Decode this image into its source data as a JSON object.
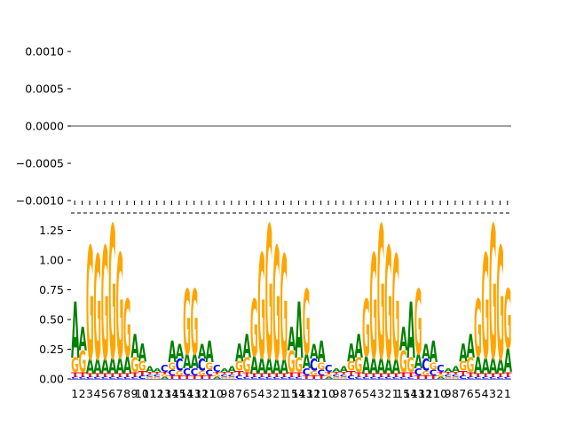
{
  "chart_data": [
    {
      "type": "line",
      "title": "",
      "xlabel": "",
      "ylabel": "",
      "ylim": [
        -0.00125,
        0.00125
      ],
      "ytick_labels": [
        "0.0010",
        "0.0005",
        "0.0000",
        "−0.0005",
        "−0.0010"
      ],
      "ytick_values": [
        0.001,
        0.0005,
        0,
        -0.0005,
        -0.001
      ],
      "series": [
        {
          "values": [
            0,
            0
          ]
        }
      ],
      "grid": false
    },
    {
      "type": "bar",
      "subtype": "sequence-logo",
      "title": "",
      "xlabel": "",
      "ylabel": "",
      "ylim": [
        0,
        1.37
      ],
      "ytick_labels": [
        "0.00",
        "0.25",
        "0.50",
        "0.75",
        "1.00",
        "1.25"
      ],
      "ytick_values": [
        0,
        0.25,
        0.5,
        0.75,
        1.0,
        1.25
      ],
      "categories": [
        "1",
        "2",
        "3",
        "4",
        "5",
        "6",
        "7",
        "8",
        "9",
        "10",
        "11",
        "12",
        "13",
        "14",
        "15",
        "14",
        "13",
        "12",
        "11",
        "10",
        "9",
        "8",
        "7",
        "6",
        "5",
        "4",
        "3",
        "2",
        "1",
        "15",
        "14",
        "13",
        "12",
        "11",
        "10",
        "9",
        "8",
        "7",
        "6",
        "5",
        "4",
        "3",
        "2",
        "1",
        "15",
        "14",
        "13",
        "12",
        "11",
        "10",
        "9",
        "8",
        "7",
        "6",
        "5",
        "4",
        "3",
        "2",
        "1"
      ],
      "letter_colors": {
        "A": "#008000",
        "C": "#0000ff",
        "G": "#ffa500",
        "T": "#ff0000"
      },
      "columns": [
        {
          "A": 0.47,
          "G": 0.12,
          "C": 0.02,
          "T": 0.04
        },
        {
          "A": 0.2,
          "G": 0.18,
          "C": 0.02,
          "T": 0.04
        },
        {
          "A": 0.12,
          "G": 0.95,
          "C": 0.02,
          "T": 0.03
        },
        {
          "A": 0.12,
          "G": 0.88,
          "C": 0.02,
          "T": 0.03
        },
        {
          "A": 0.12,
          "G": 0.95,
          "C": 0.02,
          "T": 0.03
        },
        {
          "A": 0.13,
          "G": 1.12,
          "C": 0.02,
          "T": 0.03
        },
        {
          "A": 0.13,
          "G": 0.88,
          "C": 0.02,
          "T": 0.03
        },
        {
          "A": 0.14,
          "G": 0.48,
          "C": 0.02,
          "T": 0.03
        },
        {
          "A": 0.2,
          "G": 0.12,
          "C": 0.02,
          "T": 0.04
        },
        {
          "A": 0.15,
          "G": 0.08,
          "C": 0.03,
          "T": 0.04
        },
        {
          "A": 0.05,
          "G": 0.02,
          "C": 0.02,
          "T": 0.02
        },
        {
          "A": 0.03,
          "G": 0.02,
          "C": 0.02,
          "T": 0.02
        },
        {
          "A": 0.02,
          "G": 0.02,
          "C": 0.06,
          "T": 0.02
        },
        {
          "A": 0.18,
          "G": 0.06,
          "C": 0.05,
          "T": 0.03
        },
        {
          "A": 0.12,
          "G": 0.04,
          "C": 0.1,
          "T": 0.03
        },
        {
          "A": 0.12,
          "G": 0.55,
          "C": 0.06,
          "T": 0.03
        },
        {
          "A": 0.12,
          "G": 0.55,
          "C": 0.06,
          "T": 0.03
        },
        {
          "A": 0.12,
          "G": 0.04,
          "C": 0.1,
          "T": 0.03
        },
        {
          "A": 0.18,
          "G": 0.06,
          "C": 0.05,
          "T": 0.03
        },
        {
          "A": 0.02,
          "G": 0.02,
          "C": 0.06,
          "T": 0.02
        },
        {
          "A": 0.03,
          "G": 0.02,
          "C": 0.02,
          "T": 0.02
        },
        {
          "A": 0.05,
          "G": 0.02,
          "C": 0.02,
          "T": 0.02
        },
        {
          "A": 0.15,
          "G": 0.08,
          "C": 0.03,
          "T": 0.04
        },
        {
          "A": 0.2,
          "G": 0.12,
          "C": 0.02,
          "T": 0.04
        },
        {
          "A": 0.14,
          "G": 0.48,
          "C": 0.02,
          "T": 0.03
        },
        {
          "A": 0.13,
          "G": 0.88,
          "C": 0.02,
          "T": 0.03
        },
        {
          "A": 0.13,
          "G": 1.12,
          "C": 0.02,
          "T": 0.03
        },
        {
          "A": 0.12,
          "G": 0.95,
          "C": 0.02,
          "T": 0.03
        },
        {
          "A": 0.12,
          "G": 0.88,
          "C": 0.02,
          "T": 0.03
        },
        {
          "A": 0.2,
          "G": 0.18,
          "C": 0.02,
          "T": 0.04
        },
        {
          "A": 0.47,
          "G": 0.12,
          "C": 0.02,
          "T": 0.04
        },
        {
          "A": 0.12,
          "G": 0.55,
          "C": 0.06,
          "T": 0.03
        },
        {
          "A": 0.12,
          "G": 0.04,
          "C": 0.1,
          "T": 0.03
        },
        {
          "A": 0.18,
          "G": 0.06,
          "C": 0.05,
          "T": 0.03
        },
        {
          "A": 0.02,
          "G": 0.02,
          "C": 0.06,
          "T": 0.02
        },
        {
          "A": 0.03,
          "G": 0.02,
          "C": 0.02,
          "T": 0.02
        },
        {
          "A": 0.05,
          "G": 0.02,
          "C": 0.02,
          "T": 0.02
        },
        {
          "A": 0.15,
          "G": 0.08,
          "C": 0.03,
          "T": 0.04
        },
        {
          "A": 0.2,
          "G": 0.12,
          "C": 0.02,
          "T": 0.04
        },
        {
          "A": 0.14,
          "G": 0.48,
          "C": 0.02,
          "T": 0.03
        },
        {
          "A": 0.13,
          "G": 0.88,
          "C": 0.02,
          "T": 0.03
        },
        {
          "A": 0.13,
          "G": 1.12,
          "C": 0.02,
          "T": 0.03
        },
        {
          "A": 0.12,
          "G": 0.95,
          "C": 0.02,
          "T": 0.03
        },
        {
          "A": 0.12,
          "G": 0.88,
          "C": 0.02,
          "T": 0.03
        },
        {
          "A": 0.2,
          "G": 0.18,
          "C": 0.02,
          "T": 0.04
        },
        {
          "A": 0.47,
          "G": 0.12,
          "C": 0.02,
          "T": 0.04
        },
        {
          "A": 0.12,
          "G": 0.55,
          "C": 0.06,
          "T": 0.03
        },
        {
          "A": 0.12,
          "G": 0.04,
          "C": 0.1,
          "T": 0.03
        },
        {
          "A": 0.18,
          "G": 0.06,
          "C": 0.05,
          "T": 0.03
        },
        {
          "A": 0.02,
          "G": 0.02,
          "C": 0.06,
          "T": 0.02
        },
        {
          "A": 0.03,
          "G": 0.02,
          "C": 0.02,
          "T": 0.02
        },
        {
          "A": 0.05,
          "G": 0.02,
          "C": 0.02,
          "T": 0.02
        },
        {
          "A": 0.15,
          "G": 0.08,
          "C": 0.03,
          "T": 0.04
        },
        {
          "A": 0.2,
          "G": 0.12,
          "C": 0.02,
          "T": 0.04
        },
        {
          "A": 0.14,
          "G": 0.48,
          "C": 0.02,
          "T": 0.03
        },
        {
          "A": 0.13,
          "G": 0.88,
          "C": 0.02,
          "T": 0.03
        },
        {
          "A": 0.13,
          "G": 1.12,
          "C": 0.02,
          "T": 0.03
        },
        {
          "A": 0.12,
          "G": 0.95,
          "C": 0.02,
          "T": 0.03
        },
        {
          "A": 0.2,
          "G": 0.5,
          "C": 0.02,
          "T": 0.04
        }
      ],
      "grid": false
    }
  ]
}
